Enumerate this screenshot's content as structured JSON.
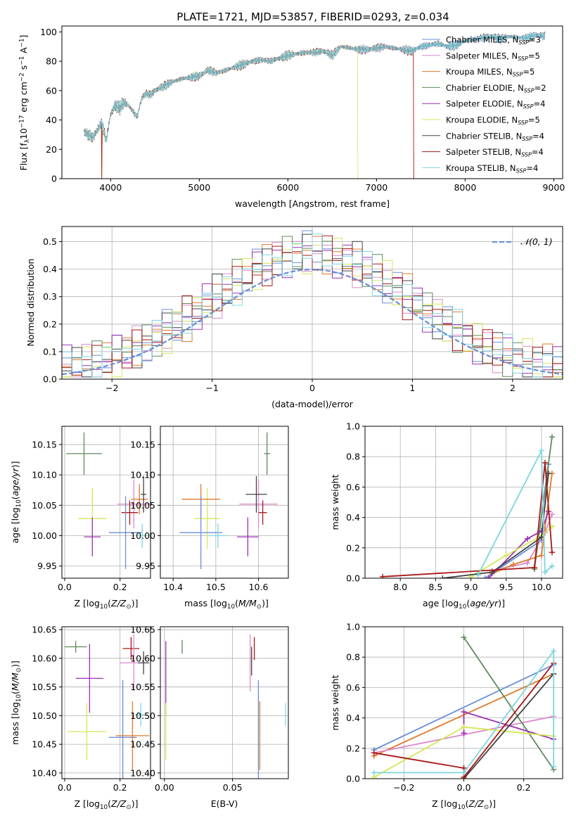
{
  "figure_title": "PLATE=1721, MJD=53857, FIBERID=0293, z=0.034",
  "colors": {
    "Chabrier MILES": "#6a8fd8",
    "Salpeter MILES": "#dd88cc",
    "Kroupa MILES": "#e07a2a",
    "Chabrier ELODIE": "#5d8a5d",
    "Salpeter ELODIE": "#9a32b0",
    "Kroupa ELODIE": "#d4e85a",
    "Chabrier STELIB": "#444444",
    "Salpeter STELIB": "#a81818",
    "Kroupa STELIB": "#7dd6e0"
  },
  "chart_data": [
    {
      "id": "spectrum",
      "type": "line",
      "title": "PLATE=1721, MJD=53857, FIBERID=0293, z=0.034",
      "xlabel": "wavelength [Angstrom, rest frame]",
      "ylabel": "Flux [f_λ 10^-17 erg cm^-2 s^-1 A^-1]",
      "xlim": [
        3450,
        9100
      ],
      "ylim": [
        0,
        104
      ],
      "xticks": [
        4000,
        5000,
        6000,
        7000,
        8000,
        9000
      ],
      "yticks": [
        0,
        20,
        40,
        60,
        80,
        100
      ],
      "legend_loc": "right",
      "series": [
        {
          "name": "Chabrier MILES",
          "nssp": "3"
        },
        {
          "name": "Salpeter MILES",
          "nssp": "5"
        },
        {
          "name": "Kroupa MILES",
          "nssp": "5"
        },
        {
          "name": "Chabrier ELODIE",
          "nssp": "2"
        },
        {
          "name": "Salpeter ELODIE",
          "nssp": "4"
        },
        {
          "name": "Kroupa ELODIE",
          "nssp": "5"
        },
        {
          "name": "Chabrier STELIB",
          "nssp": "4"
        },
        {
          "name": "Salpeter STELIB",
          "nssp": "4"
        },
        {
          "name": "Kroupa STELIB",
          "nssp": "4"
        }
      ],
      "spectrum_x": [
        3700,
        3750,
        3800,
        3850,
        3900,
        3950,
        4000,
        4050,
        4100,
        4150,
        4200,
        4250,
        4300,
        4350,
        4400,
        4450,
        4500,
        4600,
        4700,
        4800,
        4900,
        5000,
        5100,
        5200,
        5300,
        5400,
        5500,
        5600,
        5700,
        5800,
        5900,
        6000,
        6100,
        6200,
        6300,
        6400,
        6500,
        6600,
        6700,
        6800,
        6900,
        7000,
        7100,
        7200,
        7300,
        7400,
        7500,
        7600,
        7700,
        7800,
        7900,
        8000,
        8100,
        8200,
        8300,
        8400,
        8500,
        8600,
        8700,
        8800,
        8900
      ],
      "spectrum_y": [
        32,
        30,
        28,
        33,
        38,
        26,
        44,
        50,
        48,
        52,
        50,
        46,
        42,
        55,
        58,
        57,
        60,
        63,
        66,
        68,
        69,
        70,
        74,
        72,
        74,
        76,
        78,
        80,
        81,
        80,
        82,
        84,
        85,
        86,
        86,
        87,
        84,
        90,
        89,
        88,
        88,
        89,
        90,
        89,
        88,
        87,
        90,
        91,
        92,
        90,
        91,
        94,
        95,
        96,
        97,
        95,
        97,
        96,
        96,
        98,
        97
      ],
      "cutoffs": {
        "Kroupa ELODIE": [
          3900,
          6790
        ],
        "Salpeter STELIB": [
          3900,
          7420
        ],
        "Kroupa MILES": [
          3900,
          7420
        ]
      }
    },
    {
      "id": "residuals",
      "type": "bar",
      "xlabel": "(data-model)/error",
      "ylabel": "Normed distribution",
      "xlim": [
        -2.5,
        2.5
      ],
      "ylim": [
        0,
        0.555
      ],
      "xticks": [
        -2,
        -1,
        0,
        1,
        2
      ],
      "yticks": [
        0.0,
        0.1,
        0.2,
        0.3,
        0.4,
        0.5
      ],
      "normal_label": "𝒩(0, 1)",
      "bin_start": -2.5,
      "bin_width": 0.1,
      "normal_color": "#6a8fd8"
    },
    {
      "id": "age_vs_Z",
      "type": "scatter",
      "xlabel": "Z [log10(Z/Z⊙)]",
      "ylabel": "age [log10(age/yr)]",
      "xlim": [
        -0.01,
        0.31
      ],
      "ylim": [
        9.93,
        10.18
      ],
      "xticks": [
        0.0,
        0.2
      ],
      "yticks": [
        9.95,
        10.0,
        10.05,
        10.1,
        10.15
      ],
      "points": [
        {
          "series": "Chabrier ELODIE",
          "x": 0.07,
          "y": 10.135,
          "xerr": 0.065,
          "yerr": 0.035
        },
        {
          "series": "Kroupa ELODIE",
          "x": 0.1,
          "y": 10.028,
          "xerr": 0.05,
          "yerr": 0.05
        },
        {
          "series": "Salpeter ELODIE",
          "x": 0.1,
          "y": 9.998,
          "xerr": 0.03,
          "yerr": 0.032
        },
        {
          "series": "Kroupa MILES",
          "x": 0.27,
          "y": 10.06,
          "xerr": 0.03,
          "yerr": 0.025
        },
        {
          "series": "Salpeter MILES",
          "x": 0.25,
          "y": 10.052,
          "xerr": 0.06,
          "yerr": 0.04
        },
        {
          "series": "Chabrier STELIB",
          "x": 0.285,
          "y": 10.068,
          "xerr": 0.01,
          "yerr": 0.03
        },
        {
          "series": "Salpeter STELIB",
          "x": 0.235,
          "y": 10.038,
          "xerr": 0.03,
          "yerr": 0.02
        },
        {
          "series": "Chabrier MILES",
          "x": 0.22,
          "y": 10.005,
          "xerr": 0.06,
          "yerr": 0.06
        },
        {
          "series": "Kroupa STELIB",
          "x": 0.28,
          "y": 10.0,
          "xerr": 0.02,
          "yerr": 0.02
        }
      ]
    },
    {
      "id": "age_vs_mass",
      "type": "scatter",
      "xlabel": "mass [log10(M/M⊙)]",
      "ylabel": "",
      "xlim": [
        10.37,
        10.67
      ],
      "ylim": [
        9.93,
        10.18
      ],
      "xticks": [
        10.4,
        10.5,
        10.6
      ],
      "yticks": [
        9.95,
        10.0,
        10.05,
        10.1,
        10.15
      ],
      "points": [
        {
          "series": "Chabrier ELODIE",
          "x": 10.62,
          "y": 10.135,
          "xerr": 0.007,
          "yerr": 0.035
        },
        {
          "series": "Kroupa ELODIE",
          "x": 10.48,
          "y": 10.028,
          "xerr": 0.03,
          "yerr": 0.05
        },
        {
          "series": "Salpeter ELODIE",
          "x": 10.575,
          "y": 9.998,
          "xerr": 0.025,
          "yerr": 0.032
        },
        {
          "series": "Kroupa MILES",
          "x": 10.465,
          "y": 10.06,
          "xerr": 0.045,
          "yerr": 0.025
        },
        {
          "series": "Salpeter MILES",
          "x": 10.6,
          "y": 10.052,
          "xerr": 0.045,
          "yerr": 0.04
        },
        {
          "series": "Chabrier STELIB",
          "x": 10.595,
          "y": 10.068,
          "xerr": 0.025,
          "yerr": 0.03
        },
        {
          "series": "Salpeter STELIB",
          "x": 10.61,
          "y": 10.038,
          "xerr": 0.01,
          "yerr": 0.02
        },
        {
          "series": "Chabrier MILES",
          "x": 10.465,
          "y": 10.005,
          "xerr": 0.05,
          "yerr": 0.06
        },
        {
          "series": "Kroupa STELIB",
          "x": 10.505,
          "y": 10.0,
          "xerr": 0.02,
          "yerr": 0.02
        }
      ]
    },
    {
      "id": "weight_vs_age",
      "type": "line",
      "xlabel": "age [log10(age/yr)]",
      "ylabel": "mass weight",
      "xlim": [
        7.5,
        10.3
      ],
      "ylim": [
        0,
        1
      ],
      "xticks": [
        8.0,
        8.5,
        9.0,
        9.5,
        10.0
      ],
      "yticks": [
        0.0,
        0.2,
        0.4,
        0.6,
        0.8,
        1.0
      ],
      "series": [
        {
          "name": "Chabrier MILES",
          "x": [
            9.2,
            10.0,
            10.1
          ],
          "y": [
            0.0,
            0.25,
            0.75
          ]
        },
        {
          "name": "Salpeter MILES",
          "x": [
            9.3,
            9.8,
            10.05,
            10.15
          ],
          "y": [
            0.05,
            0.1,
            0.3,
            0.42
          ]
        },
        {
          "name": "Kroupa MILES",
          "x": [
            9.3,
            9.6,
            10.0,
            10.15
          ],
          "y": [
            0.03,
            0.09,
            0.15,
            0.69
          ]
        },
        {
          "name": "Chabrier ELODIE",
          "x": [
            9.9,
            10.15
          ],
          "y": [
            0.06,
            0.93
          ]
        },
        {
          "name": "Salpeter ELODIE",
          "x": [
            9.25,
            9.8,
            10.0,
            10.1
          ],
          "y": [
            0.0,
            0.26,
            0.31,
            0.44
          ]
        },
        {
          "name": "Kroupa ELODIE",
          "x": [
            9.0,
            9.5,
            10.0,
            10.15
          ],
          "y": [
            0.01,
            0.15,
            0.28,
            0.34
          ]
        },
        {
          "name": "Chabrier STELIB",
          "x": [
            8.6,
            9.3,
            10.0,
            10.1
          ],
          "y": [
            0.0,
            0.04,
            0.27,
            0.69
          ]
        },
        {
          "name": "Salpeter STELIB",
          "x": [
            7.75,
            9.9,
            10.05,
            10.15
          ],
          "y": [
            0.01,
            0.07,
            0.76,
            0.17
          ]
        },
        {
          "name": "Kroupa STELIB",
          "x": [
            9.1,
            10.0,
            10.05,
            10.15
          ],
          "y": [
            0.02,
            0.84,
            0.04,
            0.08
          ]
        }
      ]
    },
    {
      "id": "mass_vs_Z",
      "type": "scatter",
      "xlabel": "Z [log10(Z/Z⊙)]",
      "ylabel": "mass [log10(M/M⊙)]",
      "xlim": [
        -0.01,
        0.31
      ],
      "ylim": [
        10.39,
        10.655
      ],
      "xticks": [
        0.0,
        0.2
      ],
      "yticks": [
        10.4,
        10.45,
        10.5,
        10.55,
        10.6,
        10.65
      ],
      "points": [
        {
          "series": "Chabrier ELODIE",
          "x": 0.04,
          "y": 10.62,
          "xerr": 0.04,
          "yerr": 0.01
        },
        {
          "series": "Salpeter ELODIE",
          "x": 0.09,
          "y": 10.565,
          "xerr": 0.05,
          "yerr": 0.06
        },
        {
          "series": "Kroupa ELODIE",
          "x": 0.08,
          "y": 10.472,
          "xerr": 0.07,
          "yerr": 0.05
        },
        {
          "series": "Salpeter STELIB",
          "x": 0.24,
          "y": 10.617,
          "xerr": 0.03,
          "yerr": 0.02
        },
        {
          "series": "Salpeter MILES",
          "x": 0.25,
          "y": 10.592,
          "xerr": 0.05,
          "yerr": 0.05
        },
        {
          "series": "Chabrier STELIB",
          "x": 0.285,
          "y": 10.592,
          "xerr": 0.02,
          "yerr": 0.02
        },
        {
          "series": "Kroupa STELIB",
          "x": 0.275,
          "y": 10.502,
          "xerr": 0.02,
          "yerr": 0.02
        },
        {
          "series": "Chabrier MILES",
          "x": 0.21,
          "y": 10.462,
          "xerr": 0.05,
          "yerr": 0.1
        },
        {
          "series": "Kroupa MILES",
          "x": 0.245,
          "y": 10.465,
          "xerr": 0.06,
          "yerr": 0.06
        }
      ]
    },
    {
      "id": "mass_vs_ebv",
      "type": "scatter",
      "xlabel": "E(B-V)",
      "ylabel": "",
      "xlim": [
        -0.003,
        0.091
      ],
      "ylim": [
        10.39,
        10.655
      ],
      "xticks": [
        0.0,
        0.05
      ],
      "yticks": [
        10.4,
        10.45,
        10.5,
        10.55,
        10.6,
        10.65
      ],
      "points": [
        {
          "series": "Salpeter ELODIE",
          "x": 0.001,
          "y": 10.565,
          "xerr": 0,
          "yerr": 0.065
        },
        {
          "series": "Kroupa ELODIE",
          "x": 0.001,
          "y": 10.472,
          "xerr": 0,
          "yerr": 0.05
        },
        {
          "series": "Chabrier ELODIE",
          "x": 0.013,
          "y": 10.62,
          "xerr": 0,
          "yerr": 0.012
        },
        {
          "series": "Chabrier STELIB",
          "x": 0.064,
          "y": 10.595,
          "xerr": 0,
          "yerr": 0.025
        },
        {
          "series": "Salpeter MILES",
          "x": 0.063,
          "y": 10.592,
          "xerr": 0,
          "yerr": 0.05
        },
        {
          "series": "Salpeter STELIB",
          "x": 0.066,
          "y": 10.617,
          "xerr": 0,
          "yerr": 0.02
        },
        {
          "series": "Chabrier MILES",
          "x": 0.069,
          "y": 10.462,
          "xerr": 0,
          "yerr": 0.1
        },
        {
          "series": "Kroupa MILES",
          "x": 0.07,
          "y": 10.465,
          "xerr": 0,
          "yerr": 0.06
        },
        {
          "series": "Kroupa STELIB",
          "x": 0.089,
          "y": 10.502,
          "xerr": 0,
          "yerr": 0.02
        }
      ]
    },
    {
      "id": "weight_vs_Z",
      "type": "line",
      "xlabel": "Z [log10(Z/Z⊙)]",
      "ylabel": "mass weight",
      "xlim": [
        -0.33,
        0.33
      ],
      "ylim": [
        0,
        1
      ],
      "xticks": [
        -0.2,
        0.0,
        0.2
      ],
      "yticks": [
        0.0,
        0.2,
        0.4,
        0.6,
        0.8,
        1.0
      ],
      "series": [
        {
          "name": "Chabrier MILES",
          "x": [
            -0.3,
            0.3
          ],
          "y": [
            0.19,
            0.75
          ]
        },
        {
          "name": "Kroupa MILES",
          "x": [
            -0.3,
            0.3
          ],
          "y": [
            0.15,
            0.69
          ]
        },
        {
          "name": "Salpeter MILES",
          "x": [
            -0.3,
            0.0,
            0.3
          ],
          "y": [
            0.17,
            0.29,
            0.41
          ]
        },
        {
          "name": "Chabrier ELODIE",
          "x": [
            0.0,
            0.3
          ],
          "y": [
            0.93,
            0.06
          ]
        },
        {
          "name": "Salpeter ELODIE",
          "x": [
            0.0,
            0.0,
            0.3
          ],
          "y": [
            0.3,
            0.44,
            0.26
          ]
        },
        {
          "name": "Kroupa ELODIE",
          "x": [
            -0.3,
            0.0,
            0.3
          ],
          "y": [
            0.01,
            0.34,
            0.28
          ]
        },
        {
          "name": "Chabrier STELIB",
          "x": [
            0.0,
            0.3
          ],
          "y": [
            0.0,
            0.69
          ]
        },
        {
          "name": "Salpeter STELIB",
          "x": [
            -0.3,
            0.0,
            0.0,
            0.3
          ],
          "y": [
            0.17,
            0.07,
            0.01,
            0.76
          ]
        },
        {
          "name": "Kroupa STELIB",
          "x": [
            -0.3,
            0.0,
            0.3,
            0.3
          ],
          "y": [
            0.04,
            0.04,
            0.84,
            0.08
          ]
        }
      ]
    }
  ]
}
